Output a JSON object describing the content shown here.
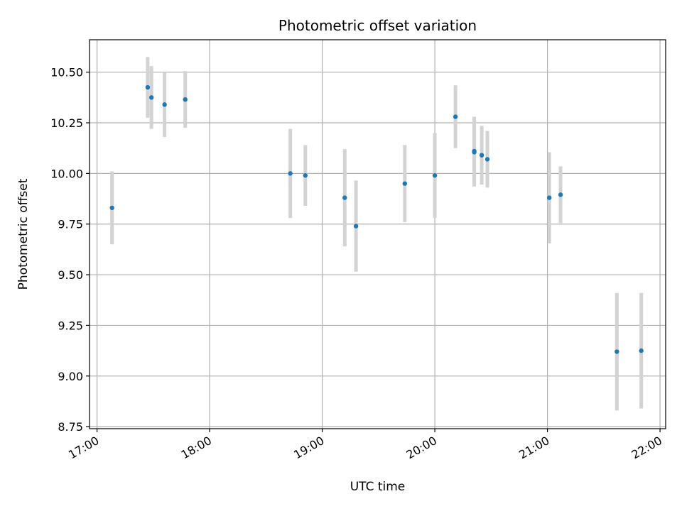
{
  "chart_data": {
    "type": "scatter",
    "title": "Photometric offset variation",
    "xlabel": "UTC time",
    "ylabel": "Photometric offset",
    "x_ticks": [
      "17:00",
      "18:00",
      "19:00",
      "20:00",
      "21:00",
      "22:00"
    ],
    "y_ticks": [
      "8.75",
      "9.00",
      "9.25",
      "9.50",
      "9.75",
      "10.00",
      "10.25",
      "10.50"
    ],
    "xlim": [
      "16:56",
      "22:03"
    ],
    "ylim": [
      8.74,
      10.66
    ],
    "grid": true,
    "marker_color": "#1f77b4",
    "errorbar_color": "#d3d3d3",
    "points": [
      {
        "x": "17:08",
        "y": 9.83,
        "err": 0.18
      },
      {
        "x": "17:27",
        "y": 10.425,
        "err": 0.15
      },
      {
        "x": "17:29",
        "y": 10.375,
        "err": 0.155
      },
      {
        "x": "17:36",
        "y": 10.34,
        "err": 0.16
      },
      {
        "x": "17:47",
        "y": 10.365,
        "err": 0.14
      },
      {
        "x": "18:43",
        "y": 10.0,
        "err": 0.22
      },
      {
        "x": "18:51",
        "y": 9.99,
        "err": 0.15
      },
      {
        "x": "19:12",
        "y": 9.88,
        "err": 0.24
      },
      {
        "x": "19:18",
        "y": 9.74,
        "err": 0.225
      },
      {
        "x": "19:44",
        "y": 9.95,
        "err": 0.19
      },
      {
        "x": "20:00",
        "y": 9.99,
        "err": 0.21
      },
      {
        "x": "20:11",
        "y": 10.28,
        "err": 0.155
      },
      {
        "x": "20:21",
        "y": 10.11,
        "err": 0.17
      },
      {
        "x": "20:21",
        "y": 10.105,
        "err": 0.17
      },
      {
        "x": "20:25",
        "y": 10.09,
        "err": 0.145
      },
      {
        "x": "20:28",
        "y": 10.07,
        "err": 0.14
      },
      {
        "x": "21:01",
        "y": 9.88,
        "err": 0.225
      },
      {
        "x": "21:07",
        "y": 9.895,
        "err": 0.14
      },
      {
        "x": "21:37",
        "y": 9.12,
        "err": 0.29
      },
      {
        "x": "21:50",
        "y": 9.125,
        "err": 0.285
      }
    ]
  }
}
